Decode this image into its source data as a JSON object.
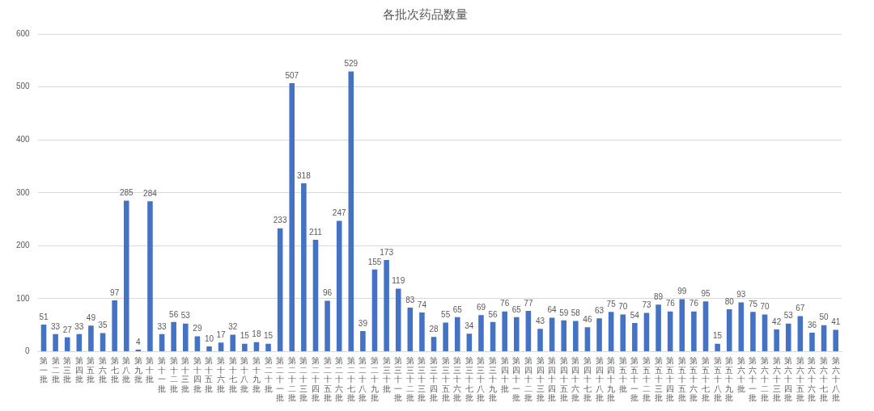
{
  "chart_data": {
    "type": "bar",
    "title": "各批次药品数量",
    "categories": [
      "第一批",
      "第二批",
      "第三批",
      "第四批",
      "第五批",
      "第六批",
      "第七批",
      "第八批",
      "第九批",
      "第十批",
      "第十一批",
      "第十二批",
      "第十三批",
      "第十四批",
      "第十五批",
      "第十六批",
      "第十七批",
      "第十八批",
      "第十九批",
      "第二十批",
      "第二十一批",
      "第二十二批",
      "第二十三批",
      "第二十四批",
      "第二十五批",
      "第二十六批",
      "第二十七批",
      "第二十八批",
      "第二十九批",
      "第三十批",
      "第三十一批",
      "第三十二批",
      "第三十三批",
      "第三十四批",
      "第三十五批",
      "第三十六批",
      "第三十七批",
      "第三十八批",
      "第三十九批",
      "第四十批",
      "第四十一批",
      "第四十二批",
      "第四十三批",
      "第四十四批",
      "第四十五批",
      "第四十六批",
      "第四十七批",
      "第四十八批",
      "第四十九批",
      "第五十批",
      "第五十一批",
      "第五十二批",
      "第五十三批",
      "第五十四批",
      "第五十五批",
      "第五十六批",
      "第五十七批",
      "第五十八批",
      "第五十九批",
      "第六十批",
      "第六十一批",
      "第六十二批",
      "第六十三批",
      "第六十四批",
      "第六十五批",
      "第六十六批",
      "第六十七批",
      "第六十八批"
    ],
    "values": [
      51,
      33,
      27,
      33,
      49,
      35,
      97,
      285,
      4,
      284,
      33,
      56,
      53,
      29,
      10,
      17,
      32,
      15,
      18,
      15,
      233,
      507,
      318,
      211,
      96,
      247,
      529,
      39,
      155,
      173,
      119,
      83,
      74,
      28,
      55,
      65,
      34,
      69,
      56,
      76,
      65,
      77,
      43,
      64,
      59,
      58,
      46,
      63,
      75,
      70,
      54,
      73,
      89,
      76,
      99,
      76,
      95,
      15,
      80,
      93,
      75,
      70,
      42,
      53,
      67,
      36,
      50,
      41
    ],
    "color": "#4472c4",
    "ylim": [
      0,
      600
    ],
    "yticks": [
      0,
      100,
      200,
      300,
      400,
      500,
      600
    ],
    "grid": "y",
    "legend": false,
    "data_labels": true
  }
}
